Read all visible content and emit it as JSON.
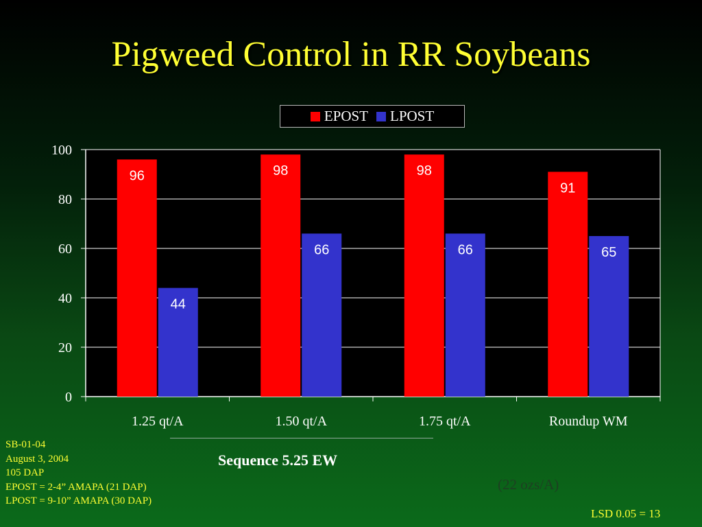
{
  "slide": {
    "title": "Pigweed Control in RR Soybeans",
    "subtitle": "Sequence 5.25 EW",
    "footnote_paren": "(22 ozs/A)",
    "lsd": "LSD 0.05 = 13",
    "notes": [
      "SB-01-04",
      "August 3, 2004",
      "105 DAP",
      "EPOST = 2-4” AMAPA (21 DAP)",
      "LPOST = 9-10” AMAPA (30 DAP)"
    ]
  },
  "chart_data": {
    "type": "bar",
    "categories": [
      "1.25 qt/A",
      "1.50 qt/A",
      "1.75 qt/A",
      "Roundup WM"
    ],
    "series": [
      {
        "name": "EPOST",
        "values": [
          96,
          98,
          98,
          91
        ],
        "color": "#ff0000"
      },
      {
        "name": "LPOST",
        "values": [
          44,
          66,
          66,
          65
        ],
        "color": "#3333cc"
      }
    ],
    "ylim": [
      0,
      100
    ],
    "yticks": [
      0,
      20,
      40,
      60,
      80,
      100
    ],
    "grid": true,
    "legend": "top-center",
    "data_labels": true
  }
}
